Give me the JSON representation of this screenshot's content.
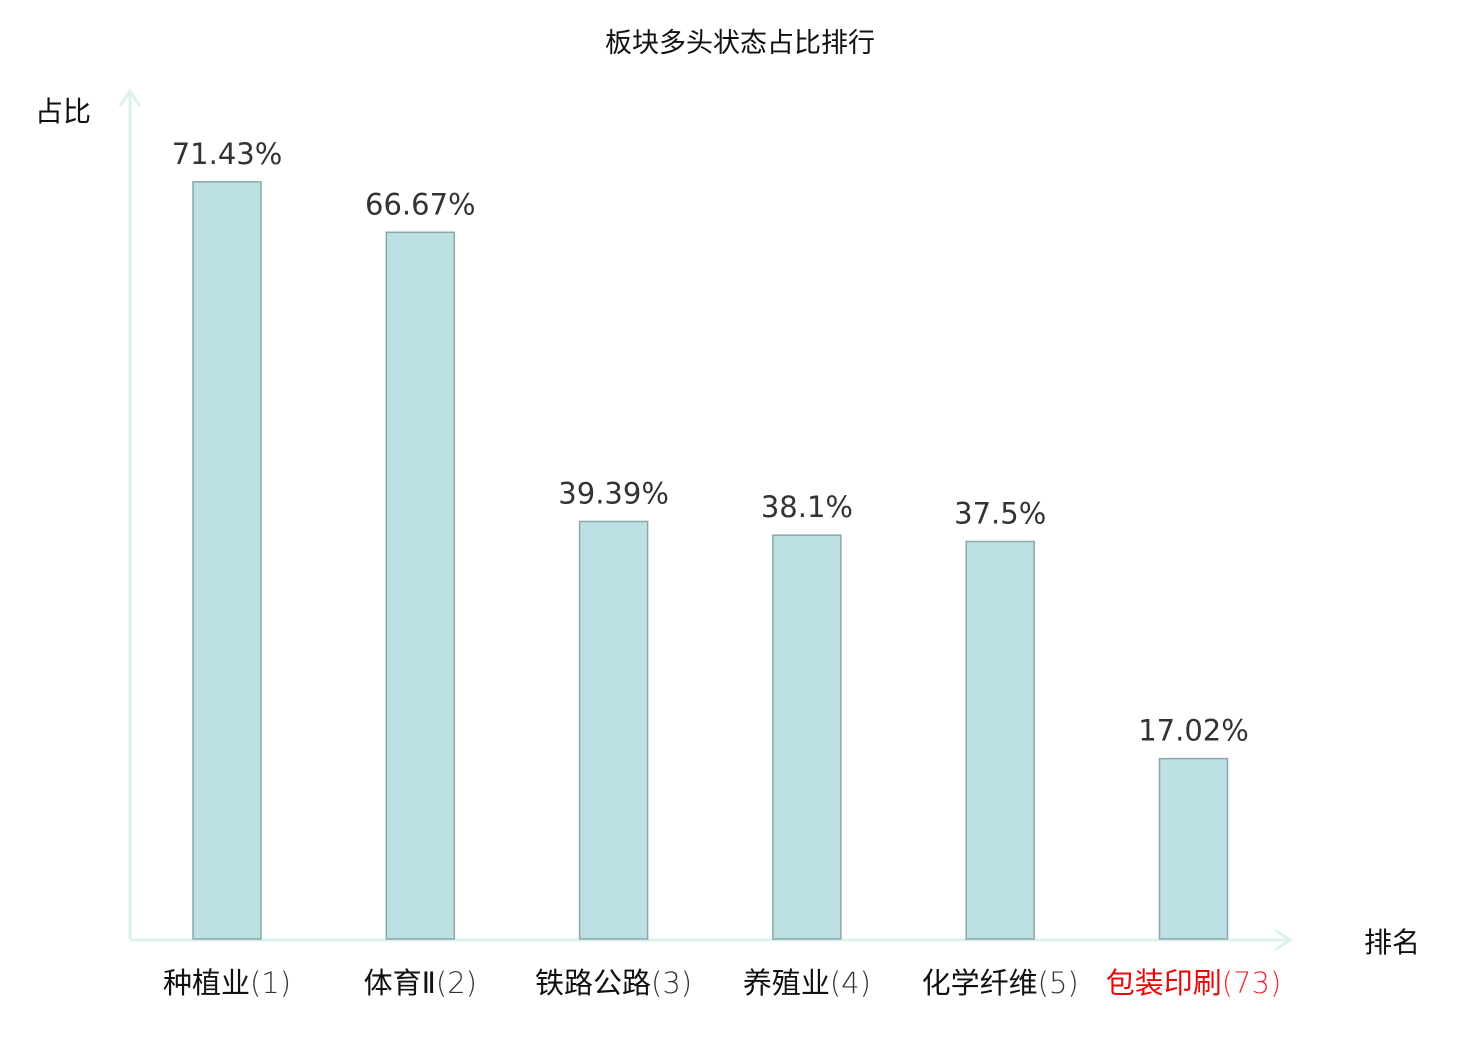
{
  "chart_data": {
    "type": "bar",
    "title": "板块多头状态占比排行",
    "xlabel": "排名",
    "ylabel": "占比",
    "ylim": [
      0,
      80
    ],
    "categories": [
      "种植业",
      "体育Ⅱ",
      "铁路公路",
      "养殖业",
      "化学纤维",
      "包装印刷"
    ],
    "ranks": [
      "(1)",
      "(2)",
      "(3)",
      "(4)",
      "(5)",
      "(73)"
    ],
    "highlighted": [
      false,
      false,
      false,
      false,
      false,
      true
    ],
    "values": [
      71.43,
      66.67,
      39.39,
      38.1,
      37.5,
      17.02
    ],
    "value_labels": [
      "71.43%",
      "66.67%",
      "39.39%",
      "38.1%",
      "37.5%",
      "17.02%"
    ],
    "grid": false,
    "colors": {
      "bar_fill": "#bce0e3",
      "bar_stroke": "#8aa8aa",
      "axis": "#ddf1ef",
      "highlight": "#e8090a",
      "text": "#111111"
    }
  }
}
